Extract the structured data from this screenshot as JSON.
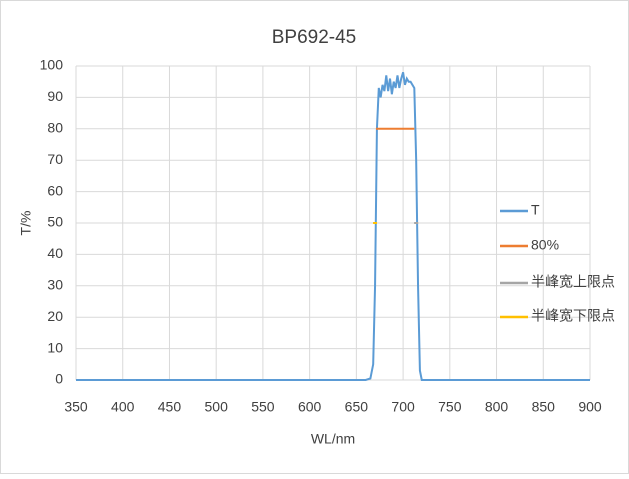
{
  "chart_data": {
    "type": "line",
    "title": "BP692-45",
    "x_label": "WL/nm",
    "y_label": "T/%",
    "xlim": [
      350,
      900
    ],
    "xticks": [
      350,
      400,
      450,
      500,
      550,
      600,
      650,
      700,
      750,
      800,
      850,
      900
    ],
    "ylim": [
      0,
      100
    ],
    "yticks": [
      0,
      10,
      20,
      30,
      40,
      50,
      60,
      70,
      80,
      90,
      100
    ],
    "grid": true,
    "legend": "right",
    "series": [
      {
        "name": "T",
        "color": "#5b9bd5",
        "style": "line",
        "x": [
          350,
          660,
          665,
          668,
          670,
          672,
          674,
          676,
          678,
          680,
          682,
          684,
          686,
          688,
          690,
          692,
          694,
          696,
          698,
          700,
          702,
          704,
          706,
          708,
          710,
          712,
          714,
          716,
          718,
          720,
          900
        ],
        "values": [
          0,
          0,
          0.5,
          5,
          30,
          80,
          93,
          90,
          94,
          92,
          97,
          92,
          96,
          91,
          95,
          93,
          97,
          93,
          96,
          98,
          94,
          96,
          95,
          95,
          94,
          93,
          70,
          30,
          3,
          0,
          0
        ]
      },
      {
        "name": "80%",
        "color": "#ed7d31",
        "style": "line",
        "x": [
          671,
          712
        ],
        "values": [
          80,
          80
        ]
      },
      {
        "name": "半峰宽上限点",
        "color": "#a5a5a5",
        "style": "point",
        "x": [
          714
        ],
        "values": [
          50
        ]
      },
      {
        "name": "半峰宽下限点",
        "color": "#ffc000",
        "style": "point",
        "x": [
          670
        ],
        "values": [
          50
        ]
      }
    ]
  }
}
